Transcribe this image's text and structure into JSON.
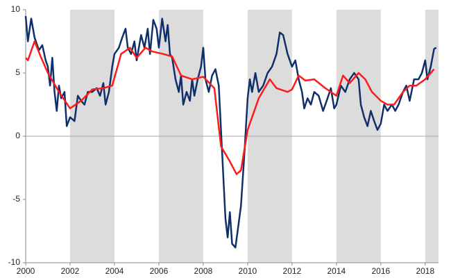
{
  "chart_data": {
    "type": "line",
    "xlim": [
      2000,
      2018.6
    ],
    "ylim": [
      -10,
      10
    ],
    "xticks": [
      2000,
      2002,
      2004,
      2006,
      2008,
      2010,
      2012,
      2014,
      2016,
      2018
    ],
    "yticks": [
      10,
      5,
      0,
      -5,
      -10
    ],
    "shaded_ranges": [
      [
        2002,
        2004
      ],
      [
        2006,
        2008
      ],
      [
        2010,
        2012
      ],
      [
        2014,
        2016
      ],
      [
        2018,
        2018.6
      ]
    ],
    "shade_color": "#dcdcdc",
    "series": [
      {
        "color": "#0e2f6b",
        "x": [
          2000.0,
          2000.1,
          2000.25,
          2000.4,
          2000.6,
          2000.75,
          2000.9,
          2001.0,
          2001.1,
          2001.2,
          2001.3,
          2001.4,
          2001.5,
          2001.6,
          2001.75,
          2001.85,
          2002.0,
          2002.2,
          2002.35,
          2002.5,
          2002.65,
          2002.8,
          2003.0,
          2003.2,
          2003.35,
          2003.5,
          2003.6,
          2003.75,
          2003.9,
          2004.0,
          2004.2,
          2004.35,
          2004.5,
          2004.6,
          2004.75,
          2004.9,
          2005.0,
          2005.2,
          2005.35,
          2005.5,
          2005.6,
          2005.75,
          2005.9,
          2006.0,
          2006.15,
          2006.3,
          2006.4,
          2006.5,
          2006.6,
          2006.75,
          2006.9,
          2007.0,
          2007.1,
          2007.25,
          2007.4,
          2007.5,
          2007.6,
          2007.75,
          2007.9,
          2008.0,
          2008.1,
          2008.25,
          2008.4,
          2008.55,
          2008.7,
          2008.8,
          2008.9,
          2009.0,
          2009.1,
          2009.2,
          2009.3,
          2009.45,
          2009.55,
          2009.7,
          2009.85,
          2010.0,
          2010.1,
          2010.2,
          2010.35,
          2010.5,
          2010.7,
          2010.9,
          2011.1,
          2011.3,
          2011.45,
          2011.6,
          2011.8,
          2012.0,
          2012.15,
          2012.3,
          2012.45,
          2012.55,
          2012.7,
          2012.85,
          2013.0,
          2013.2,
          2013.4,
          2013.6,
          2013.75,
          2013.9,
          2014.0,
          2014.2,
          2014.4,
          2014.6,
          2014.8,
          2015.0,
          2015.1,
          2015.25,
          2015.4,
          2015.55,
          2015.7,
          2015.85,
          2016.0,
          2016.15,
          2016.3,
          2016.5,
          2016.65,
          2016.8,
          2017.0,
          2017.15,
          2017.3,
          2017.5,
          2017.7,
          2017.85,
          2018.0,
          2018.1,
          2018.25,
          2018.4,
          2018.5
        ],
        "values": [
          9.5,
          7.5,
          9.3,
          7.8,
          6.8,
          7.2,
          6.0,
          5.5,
          4.0,
          6.2,
          3.5,
          2.0,
          4.0,
          3.0,
          3.5,
          0.8,
          1.5,
          1.2,
          3.2,
          2.8,
          2.5,
          3.5,
          3.5,
          3.8,
          3.2,
          4.2,
          2.5,
          3.5,
          5.5,
          6.5,
          7.0,
          7.8,
          8.5,
          7.0,
          6.5,
          7.5,
          6.0,
          8.0,
          7.0,
          8.5,
          6.5,
          9.2,
          8.5,
          7.0,
          9.3,
          7.5,
          8.8,
          6.5,
          6.2,
          4.5,
          3.5,
          4.8,
          2.5,
          3.5,
          2.8,
          4.5,
          3.2,
          4.5,
          5.5,
          7.0,
          4.5,
          3.5,
          4.8,
          5.3,
          4.0,
          0.5,
          -3,
          -6.5,
          -8.0,
          -6.0,
          -8.5,
          -8.8,
          -7.5,
          -5.5,
          -1.5,
          3.0,
          4.5,
          3.5,
          5.0,
          3.5,
          4.0,
          5.0,
          5.5,
          6.5,
          8.2,
          8.0,
          6.5,
          5.5,
          6.0,
          4.5,
          3.5,
          2.2,
          3.0,
          2.5,
          3.5,
          3.2,
          2.0,
          3.0,
          3.8,
          2.2,
          2.5,
          4.0,
          3.5,
          4.5,
          5.0,
          4.5,
          2.5,
          1.5,
          0.8,
          2.0,
          1.2,
          0.5,
          1.0,
          2.5,
          2.0,
          2.5,
          2.0,
          2.5,
          3.5,
          4.0,
          2.8,
          4.5,
          4.5,
          5.0,
          6.0,
          4.5,
          5.5,
          6.9,
          7.0
        ]
      },
      {
        "color": "#ff1a1a",
        "x": [
          2000.0,
          2000.1,
          2000.4,
          2000.7,
          2001.0,
          2001.5,
          2002.0,
          2002.5,
          2003.0,
          2003.5,
          2003.9,
          2004.3,
          2004.7,
          2005.0,
          2005.4,
          2005.7,
          2006.2,
          2006.6,
          2007.0,
          2007.5,
          2008.0,
          2008.5,
          2008.8,
          2009.2,
          2009.5,
          2009.7,
          2010.0,
          2010.5,
          2011.0,
          2011.3,
          2011.8,
          2012.0,
          2012.3,
          2012.6,
          2013.0,
          2013.5,
          2014.0,
          2014.3,
          2014.6,
          2015.0,
          2015.3,
          2015.6,
          2016.0,
          2016.3,
          2016.6,
          2017.0,
          2017.3,
          2017.6,
          2018.0,
          2018.25,
          2018.4
        ],
        "values": [
          6.2,
          6.0,
          7.5,
          6.2,
          5.0,
          3.5,
          2.2,
          2.8,
          3.7,
          3.8,
          4.0,
          6.5,
          7.0,
          6.2,
          7.0,
          6.7,
          6.5,
          6.3,
          4.8,
          4.5,
          4.7,
          3.8,
          -0.8,
          -2.0,
          -3.0,
          -2.7,
          0.5,
          3.0,
          4.5,
          3.8,
          3.5,
          3.7,
          4.8,
          4.4,
          4.5,
          3.8,
          3.2,
          4.8,
          4.2,
          5.0,
          4.5,
          3.5,
          2.8,
          2.5,
          2.5,
          3.5,
          4.0,
          4.0,
          4.5,
          5.0,
          5.3
        ]
      }
    ]
  }
}
